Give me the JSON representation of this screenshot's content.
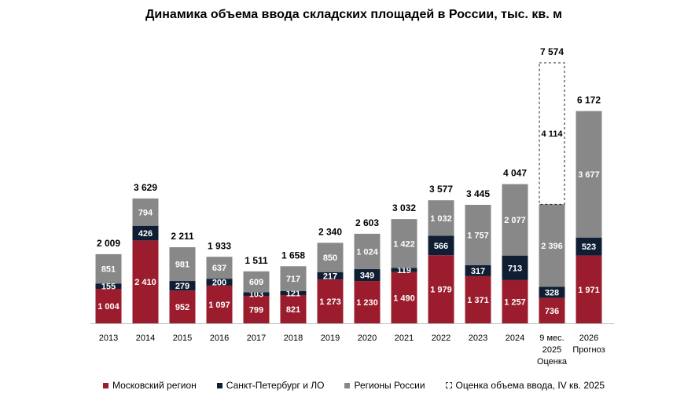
{
  "title": "Динамика объема ввода складских площадей в России, тыс. кв. м",
  "legend": [
    {
      "label": "Московский регион",
      "color": "#9b1c2c",
      "style": "solid"
    },
    {
      "label": "Санкт-Петербург и ЛО",
      "color": "#0f1e33",
      "style": "solid"
    },
    {
      "label": "Регионы России",
      "color": "#888888",
      "style": "solid"
    },
    {
      "label": "Оценка объема ввода, IV кв. 2025",
      "color": "#333333",
      "style": "dashed"
    }
  ],
  "chart_data": {
    "type": "bar",
    "stacked": true,
    "categories": [
      "2013",
      "2014",
      "2015",
      "2016",
      "2017",
      "2018",
      "2019",
      "2020",
      "2021",
      "2022",
      "2023",
      "2024",
      "9 мес. 2025 Оценка",
      "2026 Прогноз"
    ],
    "category_lines": [
      [
        "2013"
      ],
      [
        "2014"
      ],
      [
        "2015"
      ],
      [
        "2016"
      ],
      [
        "2017"
      ],
      [
        "2018"
      ],
      [
        "2019"
      ],
      [
        "2020"
      ],
      [
        "2021"
      ],
      [
        "2022"
      ],
      [
        "2023"
      ],
      [
        "2024"
      ],
      [
        "9 мес.",
        "2025",
        "Оценка"
      ],
      [
        "2026",
        "Прогноз"
      ]
    ],
    "series": [
      {
        "name": "Московский регион",
        "color": "#9b1c2c",
        "label_color": "#ffffff",
        "values": [
          1004,
          2410,
          952,
          1097,
          799,
          821,
          1273,
          1230,
          1490,
          1979,
          1371,
          1257,
          736,
          1971
        ],
        "labels": [
          "1 004",
          "2 410",
          "952",
          "1 097",
          "799",
          "821",
          "1 273",
          "1 230",
          "1 490",
          "1 979",
          "1 371",
          "1 257",
          "736",
          "1 971"
        ]
      },
      {
        "name": "Санкт-Петербург и ЛО",
        "color": "#0f1e33",
        "label_color": "#ffffff",
        "values": [
          155,
          426,
          279,
          200,
          103,
          121,
          217,
          349,
          119,
          566,
          317,
          713,
          328,
          523
        ],
        "labels": [
          "155",
          "426",
          "279",
          "200",
          "103",
          "121",
          "217",
          "349",
          "119",
          "566",
          "317",
          "713",
          "328",
          "523"
        ]
      },
      {
        "name": "Регионы России",
        "color": "#888888",
        "label_color": "#ffffff",
        "values": [
          851,
          794,
          981,
          637,
          609,
          717,
          850,
          1024,
          1422,
          1032,
          1757,
          2077,
          2396,
          3677
        ],
        "labels": [
          "851",
          "794",
          "981",
          "637",
          "609",
          "717",
          "850",
          "1 024",
          "1 422",
          "1 032",
          "1 757",
          "2 077",
          "2 396",
          "3 677"
        ]
      },
      {
        "name": "Оценка объема ввода, IV кв. 2025",
        "style": "dashed",
        "label_color": "#000000",
        "values": [
          null,
          null,
          null,
          null,
          null,
          null,
          null,
          null,
          null,
          null,
          null,
          null,
          4114,
          null
        ],
        "labels": [
          "",
          "",
          "",
          "",
          "",
          "",
          "",
          "",
          "",
          "",
          "",
          "",
          "4 114",
          ""
        ]
      }
    ],
    "totals": [
      2009,
      3629,
      2211,
      1933,
      1511,
      1658,
      2340,
      2603,
      3032,
      3577,
      3445,
      4047,
      7574,
      6172
    ],
    "total_labels": [
      "2 009",
      "3 629",
      "2 211",
      "1 933",
      "1 511",
      "1 658",
      "2 340",
      "2 603",
      "3 032",
      "3 577",
      "3 445",
      "4 047",
      "7 574",
      "6 172"
    ],
    "xlabel": "",
    "ylabel": "",
    "ylim": [
      0,
      7574
    ],
    "grid": false,
    "legend_position": "bottom"
  }
}
